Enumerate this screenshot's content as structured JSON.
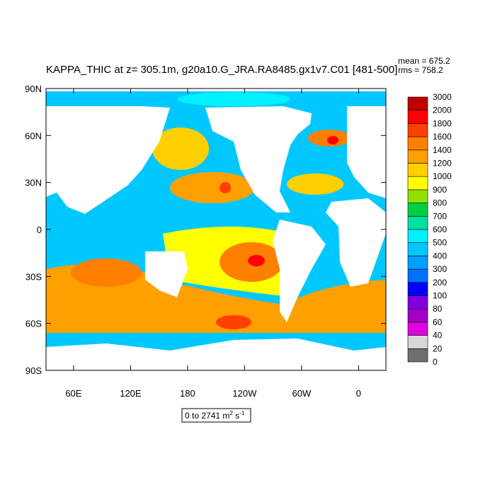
{
  "title": "KAPPA_THIC at z= 305.1m, g20a10.G_JRA.RA8485.gx1v7.C01 [481-500]",
  "stats": {
    "mean": "mean = 675.2",
    "rms": "rms = 758.2"
  },
  "y_axis": {
    "ticks": [
      {
        "value": 90,
        "label": "90N"
      },
      {
        "value": 60,
        "label": "60N"
      },
      {
        "value": 30,
        "label": "30N"
      },
      0,
      {
        "value": -30,
        "label": "30S"
      },
      {
        "value": -60,
        "label": "60S"
      },
      {
        "value": -90,
        "label": "90S"
      }
    ]
  },
  "x_axis": {
    "ticks": [
      {
        "value": 60,
        "label": "60E"
      },
      {
        "value": 120,
        "label": "120E"
      },
      180,
      {
        "value": -120,
        "label": "120W"
      },
      {
        "value": -60,
        "label": "60W"
      },
      0
    ]
  },
  "colorbar": {
    "levels": [
      0,
      20,
      40,
      60,
      80,
      100,
      200,
      300,
      400,
      500,
      600,
      700,
      800,
      900,
      1000,
      1200,
      1400,
      1600,
      1800,
      2000,
      3000
    ],
    "colors": [
      "#707070",
      "#d8d8d8",
      "#e000e0",
      "#a000c8",
      "#8000e0",
      "#0000ff",
      "#0070ff",
      "#00a0ff",
      "#00c8ff",
      "#00f0ff",
      "#00e0a0",
      "#00d040",
      "#90e000",
      "#ffff00",
      "#ffd000",
      "#ffa000",
      "#ff8000",
      "#ff4000",
      "#ff0000",
      "#c00000"
    ]
  },
  "units": {
    "text": "0 to 2741 m",
    "sup1": "2",
    "mid": " s",
    "sup2": "-1"
  }
}
